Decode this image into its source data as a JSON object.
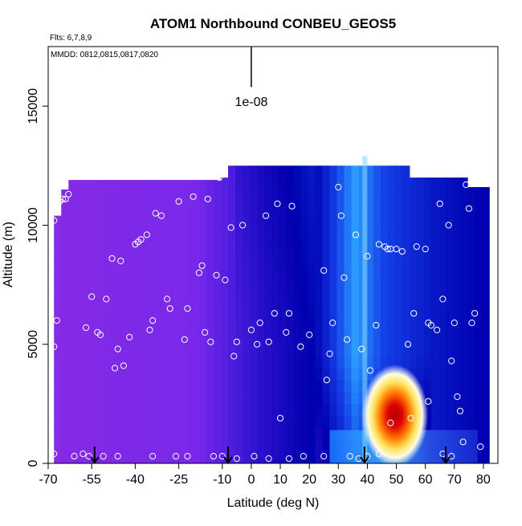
{
  "chart_data": {
    "type": "heatmap",
    "title": "ATOM1 Northbound CONBEU_GEOS5",
    "subtitle_flights": "Flts: 6,7,8,9",
    "subtitle_dates": "MMDD: 0812,0815,0817,0820",
    "xlabel": "Latitude (deg N)",
    "ylabel": "Altitude (m)",
    "x_tick_labels": [
      "-70",
      "-55",
      "-40",
      "-25",
      "-10",
      "0",
      "10",
      "20",
      "30",
      "40",
      "50",
      "60",
      "70",
      "80"
    ],
    "y_tick_labels": [
      "0",
      "5000",
      "10000",
      "15000"
    ],
    "xlim": [
      -70,
      85
    ],
    "ylim": [
      0,
      17500
    ],
    "scale_bar_label": "1e-08",
    "scale_bar_value": 1e-08,
    "colors": {
      "background_low": "#8a2be2",
      "mid_dark": "#0000b4",
      "mid_light": "#1e90ff",
      "peak": "#cc0000",
      "sample_marker": "#ffffff",
      "arrow": "#000000"
    },
    "turning_point_arrows_lat": [
      -54,
      -8,
      39,
      67
    ],
    "samples": [
      [
        -66,
        11000
      ],
      [
        -65,
        11100
      ],
      [
        -64,
        11100
      ],
      [
        -63,
        11300
      ],
      [
        -68,
        10200
      ],
      [
        -67,
        6000
      ],
      [
        -68,
        4900
      ],
      [
        -57,
        5700
      ],
      [
        -55,
        7000
      ],
      [
        -53,
        5500
      ],
      [
        -52,
        5400
      ],
      [
        -50,
        6900
      ],
      [
        -48,
        8600
      ],
      [
        -47,
        4000
      ],
      [
        -46,
        4800
      ],
      [
        -45,
        8500
      ],
      [
        -44,
        4100
      ],
      [
        -42,
        5300
      ],
      [
        -40,
        9200
      ],
      [
        -39,
        9300
      ],
      [
        -38,
        9400
      ],
      [
        -36,
        9600
      ],
      [
        -35,
        5600
      ],
      [
        -34,
        6000
      ],
      [
        -33,
        10500
      ],
      [
        -31,
        10400
      ],
      [
        -29,
        6900
      ],
      [
        -28,
        6500
      ],
      [
        -25,
        11000
      ],
      [
        -23,
        5200
      ],
      [
        -22,
        6500
      ],
      [
        -20,
        11200
      ],
      [
        -18,
        8000
      ],
      [
        -17,
        8300
      ],
      [
        -16,
        5500
      ],
      [
        -15,
        11100
      ],
      [
        -14,
        5100
      ],
      [
        -12,
        7900
      ],
      [
        -11,
        12000
      ],
      [
        -9,
        7700
      ],
      [
        -7,
        9900
      ],
      [
        -6,
        4500
      ],
      [
        -5,
        5100
      ],
      [
        -3,
        10000
      ],
      [
        0,
        5600
      ],
      [
        2,
        5000
      ],
      [
        3,
        5900
      ],
      [
        5,
        10400
      ],
      [
        6,
        5100
      ],
      [
        8,
        6300
      ],
      [
        9,
        10900
      ],
      [
        12,
        5500
      ],
      [
        13,
        6300
      ],
      [
        14,
        10800
      ],
      [
        17,
        4900
      ],
      [
        20,
        5400
      ],
      [
        25,
        8100
      ],
      [
        26,
        3500
      ],
      [
        27,
        4600
      ],
      [
        28,
        5900
      ],
      [
        30,
        11600
      ],
      [
        31,
        10400
      ],
      [
        32,
        7800
      ],
      [
        33,
        5200
      ],
      [
        36,
        9600
      ],
      [
        38,
        4800
      ],
      [
        40,
        8700
      ],
      [
        41,
        3900
      ],
      [
        43,
        5800
      ],
      [
        44,
        9200
      ],
      [
        46,
        9100
      ],
      [
        47,
        9000
      ],
      [
        48,
        9000
      ],
      [
        50,
        9000
      ],
      [
        52,
        8900
      ],
      [
        54,
        5000
      ],
      [
        56,
        6300
      ],
      [
        57,
        9100
      ],
      [
        60,
        9000
      ],
      [
        61,
        5900
      ],
      [
        62,
        5800
      ],
      [
        64,
        5600
      ],
      [
        65,
        10900
      ],
      [
        66,
        6900
      ],
      [
        68,
        10000
      ],
      [
        69,
        4300
      ],
      [
        70,
        5900
      ],
      [
        71,
        2800
      ],
      [
        72,
        2200
      ],
      [
        73,
        900
      ],
      [
        74,
        11700
      ],
      [
        75,
        10700
      ],
      [
        76,
        5900
      ],
      [
        77,
        6300
      ],
      [
        -68,
        400
      ],
      [
        -61,
        300
      ],
      [
        -58,
        400
      ],
      [
        -56,
        300
      ],
      [
        -51,
        300
      ],
      [
        -46,
        300
      ],
      [
        -34,
        300
      ],
      [
        -26,
        300
      ],
      [
        -22,
        300
      ],
      [
        -13,
        300
      ],
      [
        -10,
        300
      ],
      [
        -5,
        200
      ],
      [
        1,
        300
      ],
      [
        6,
        200
      ],
      [
        13,
        200
      ],
      [
        18,
        300
      ],
      [
        25,
        300
      ],
      [
        34,
        300
      ],
      [
        37,
        200
      ],
      [
        40,
        300
      ],
      [
        44,
        400
      ],
      [
        48,
        1700
      ],
      [
        55,
        1900
      ],
      [
        61,
        2600
      ],
      [
        66,
        400
      ],
      [
        69,
        300
      ],
      [
        79,
        700
      ],
      [
        10,
        1900
      ]
    ]
  }
}
